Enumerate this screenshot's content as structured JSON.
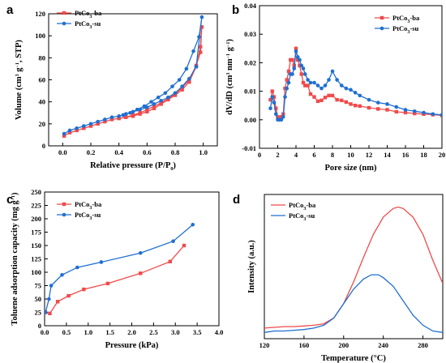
{
  "colors": {
    "red": "#f04a4a",
    "blue": "#1f6fd1"
  },
  "chart_data": [
    {
      "panel": "a",
      "type": "line",
      "xlabel": "Relative pressure (P/P0)",
      "ylabel": "Volume (cm3 g-1, STP)",
      "xlim": [
        -0.1,
        1.1
      ],
      "ylim": [
        0,
        120
      ],
      "xticks": [
        0.0,
        0.2,
        0.4,
        0.6,
        0.8,
        1.0
      ],
      "xtick_labels": [
        "0.0",
        "0.2",
        "0.4",
        "0.6",
        "0.8",
        "1.0"
      ],
      "yticks": [
        0,
        20,
        40,
        60,
        80,
        100,
        120
      ],
      "ytick_labels": [
        "0",
        "20",
        "40",
        "60",
        "80",
        "100",
        "120"
      ],
      "legend_position": "top-left",
      "series": [
        {
          "name": "PtCo3-ba",
          "name_main": "PtCo",
          "name_sub": "3",
          "name_suffix": "-ba",
          "color": "red",
          "marker": "square",
          "x": [
            0.01,
            0.05,
            0.1,
            0.15,
            0.2,
            0.25,
            0.3,
            0.35,
            0.4,
            0.45,
            0.5,
            0.55,
            0.6,
            0.65,
            0.7,
            0.75,
            0.8,
            0.85,
            0.9,
            0.95,
            0.98,
            0.99,
            0.98,
            0.95,
            0.9,
            0.85,
            0.8,
            0.75,
            0.7,
            0.65,
            0.6,
            0.55,
            0.5,
            0.45,
            0.4
          ],
          "y": [
            9,
            12,
            14,
            16,
            18,
            20,
            22,
            24,
            25,
            26,
            28,
            30,
            33,
            36,
            39,
            43,
            47,
            53,
            60,
            73,
            85,
            108,
            90,
            72,
            58,
            51,
            46,
            42,
            38,
            34,
            31,
            29,
            27,
            26,
            25
          ]
        },
        {
          "name": "PtCo3-su",
          "name_main": "PtCo",
          "name_sub": "3",
          "name_suffix": "-su",
          "color": "blue",
          "marker": "circle",
          "x": [
            0.01,
            0.05,
            0.1,
            0.15,
            0.2,
            0.25,
            0.3,
            0.35,
            0.4,
            0.45,
            0.5,
            0.55,
            0.6,
            0.65,
            0.7,
            0.75,
            0.8,
            0.85,
            0.9,
            0.95,
            0.99,
            0.97,
            0.93,
            0.88,
            0.83,
            0.78,
            0.73,
            0.68,
            0.63,
            0.58,
            0.53,
            0.48,
            0.43
          ],
          "y": [
            11,
            14,
            16,
            18,
            20,
            22,
            24,
            26,
            27,
            29,
            31,
            33,
            35,
            38,
            41,
            44,
            48,
            54,
            61,
            72,
            117,
            99,
            86,
            70,
            60,
            54,
            48,
            44,
            40,
            36,
            33,
            30,
            28
          ]
        }
      ]
    },
    {
      "panel": "b",
      "type": "line",
      "xlabel": "Pore size (nm)",
      "ylabel": "dV/dD (cm3 nm-1 g-1)",
      "xlim": [
        0,
        20
      ],
      "ylim": [
        -0.01,
        0.04
      ],
      "xticks": [
        0,
        2,
        4,
        6,
        8,
        10,
        12,
        14,
        16,
        18,
        20
      ],
      "xtick_labels": [
        "0",
        "2",
        "4",
        "6",
        "8",
        "10",
        "12",
        "14",
        "16",
        "18",
        "20"
      ],
      "yticks": [
        -0.01,
        0.0,
        0.01,
        0.02,
        0.03,
        0.04
      ],
      "ytick_labels": [
        "-0.01",
        "0.00",
        "0.01",
        "0.02",
        "0.03",
        "0.04"
      ],
      "legend_position": "top-right",
      "series": [
        {
          "name": "PtCo3-ba",
          "name_main": "PtCo",
          "name_sub": "3",
          "name_suffix": "-ba",
          "color": "red",
          "marker": "square",
          "x": [
            1.2,
            1.4,
            1.6,
            1.8,
            2.0,
            2.2,
            2.4,
            2.6,
            2.8,
            3.0,
            3.2,
            3.4,
            3.6,
            3.8,
            4.0,
            4.2,
            4.4,
            4.6,
            4.8,
            5.0,
            5.3,
            5.6,
            6.0,
            6.4,
            6.8,
            7.2,
            7.6,
            8.0,
            8.5,
            9.0,
            9.5,
            10.0,
            10.5,
            11.0,
            12.0,
            13.0,
            14.0,
            15.0,
            16.0,
            17.0,
            18.0,
            19.0,
            20.0
          ],
          "y": [
            0.007,
            0.01,
            0.008,
            0.004,
            0.001,
            0.0005,
            0.001,
            0.002,
            0.011,
            0.014,
            0.017,
            0.021,
            0.021,
            0.019,
            0.025,
            0.021,
            0.019,
            0.016,
            0.013,
            0.012,
            0.012,
            0.009,
            0.008,
            0.0065,
            0.0068,
            0.0078,
            0.0085,
            0.0085,
            0.007,
            0.0068,
            0.0062,
            0.0055,
            0.005,
            0.0048,
            0.0042,
            0.0038,
            0.0035,
            0.0028,
            0.0025,
            0.0022,
            0.002,
            0.0018,
            0.0015
          ]
        },
        {
          "name": "PtCo3-su",
          "name_main": "PtCo",
          "name_sub": "3",
          "name_suffix": "-su",
          "color": "blue",
          "marker": "circle",
          "x": [
            1.2,
            1.4,
            1.6,
            1.8,
            2.0,
            2.2,
            2.4,
            2.6,
            2.8,
            3.0,
            3.2,
            3.4,
            3.6,
            3.8,
            4.0,
            4.2,
            4.4,
            4.6,
            4.8,
            5.0,
            5.3,
            5.6,
            6.0,
            6.4,
            6.8,
            7.2,
            7.6,
            8.0,
            8.5,
            9.0,
            9.5,
            10.0,
            10.5,
            11.0,
            12.0,
            13.0,
            14.0,
            15.0,
            16.0,
            17.0,
            18.0,
            19.0,
            20.0
          ],
          "y": [
            0.004,
            0.008,
            0.006,
            0.002,
            0.0,
            0.0,
            0.0,
            0.001,
            0.008,
            0.011,
            0.013,
            0.016,
            0.016,
            0.018,
            0.024,
            0.022,
            0.021,
            0.019,
            0.018,
            0.016,
            0.014,
            0.013,
            0.013,
            0.012,
            0.011,
            0.012,
            0.014,
            0.017,
            0.014,
            0.012,
            0.011,
            0.0105,
            0.0095,
            0.0085,
            0.007,
            0.006,
            0.0055,
            0.0045,
            0.0035,
            0.003,
            0.0025,
            0.002,
            0.0017
          ]
        }
      ]
    },
    {
      "panel": "c",
      "type": "line",
      "xlabel": "Pressure (kPa)",
      "ylabel": "Toluene adsorption capacity (mg g-1)",
      "xlim": [
        0,
        4.0
      ],
      "ylim": [
        0,
        250
      ],
      "xticks": [
        0.0,
        0.5,
        1.0,
        1.5,
        2.0,
        2.5,
        3.0,
        3.5,
        4.0
      ],
      "xtick_labels": [
        "0.0",
        "0.5",
        "1.0",
        "1.5",
        "2.0",
        "2.5",
        "3.0",
        "3.5",
        "4.0"
      ],
      "yticks": [
        0,
        25,
        50,
        75,
        100,
        125,
        150,
        175,
        200,
        225,
        250
      ],
      "ytick_labels": [
        "0",
        "25",
        "50",
        "75",
        "100",
        "125",
        "150",
        "175",
        "200",
        "225",
        "250"
      ],
      "legend_position": "top-left",
      "series": [
        {
          "name": "PtCo3-ba",
          "name_main": "PtCo",
          "name_sub": "3",
          "name_suffix": "-ba",
          "color": "red",
          "marker": "square",
          "x": [
            0.02,
            0.12,
            0.3,
            0.55,
            0.9,
            1.45,
            2.2,
            2.88,
            3.2
          ],
          "y": [
            25,
            23,
            45,
            56,
            68,
            79,
            98,
            120,
            150
          ]
        },
        {
          "name": "PtCo3-su",
          "name_main": "PtCo",
          "name_sub": "3",
          "name_suffix": "-su",
          "color": "blue",
          "marker": "circle",
          "x": [
            0.02,
            0.1,
            0.15,
            0.4,
            0.75,
            1.3,
            2.2,
            2.95,
            3.4
          ],
          "y": [
            25,
            50,
            75,
            95,
            109,
            119,
            136,
            158,
            189
          ]
        }
      ]
    },
    {
      "panel": "d",
      "type": "line",
      "xlabel": "Temperature (°C)",
      "ylabel": "Intensity (a.u.)",
      "xlim": [
        120,
        300
      ],
      "xticks": [
        120,
        160,
        200,
        240,
        280
      ],
      "xtick_labels": [
        "120",
        "160",
        "200",
        "240",
        "280"
      ],
      "legend_position": "top-left",
      "series": [
        {
          "name": "PtCo3-ba",
          "name_main": "PtCo",
          "name_sub": "3",
          "name_suffix": "-ba",
          "color": "red",
          "marker": "none",
          "x": [
            120,
            130,
            140,
            150,
            160,
            170,
            180,
            190,
            200,
            210,
            220,
            230,
            240,
            250,
            255,
            260,
            270,
            280,
            290,
            300
          ],
          "y": [
            0.13,
            0.135,
            0.14,
            0.14,
            0.145,
            0.15,
            0.16,
            0.2,
            0.3,
            0.45,
            0.62,
            0.78,
            0.9,
            0.96,
            0.97,
            0.96,
            0.9,
            0.78,
            0.6,
            0.44
          ]
        },
        {
          "name": "PtCo3-su",
          "name_main": "PtCo",
          "name_sub": "3",
          "name_suffix": "-su",
          "color": "blue",
          "marker": "none",
          "x": [
            120,
            130,
            140,
            150,
            160,
            170,
            180,
            190,
            200,
            210,
            220,
            228,
            235,
            240,
            250,
            260,
            270,
            280,
            290,
            300
          ],
          "y": [
            0.1,
            0.11,
            0.11,
            0.115,
            0.12,
            0.13,
            0.15,
            0.2,
            0.3,
            0.4,
            0.47,
            0.5,
            0.5,
            0.48,
            0.42,
            0.32,
            0.22,
            0.15,
            0.11,
            0.1
          ]
        }
      ]
    }
  ]
}
